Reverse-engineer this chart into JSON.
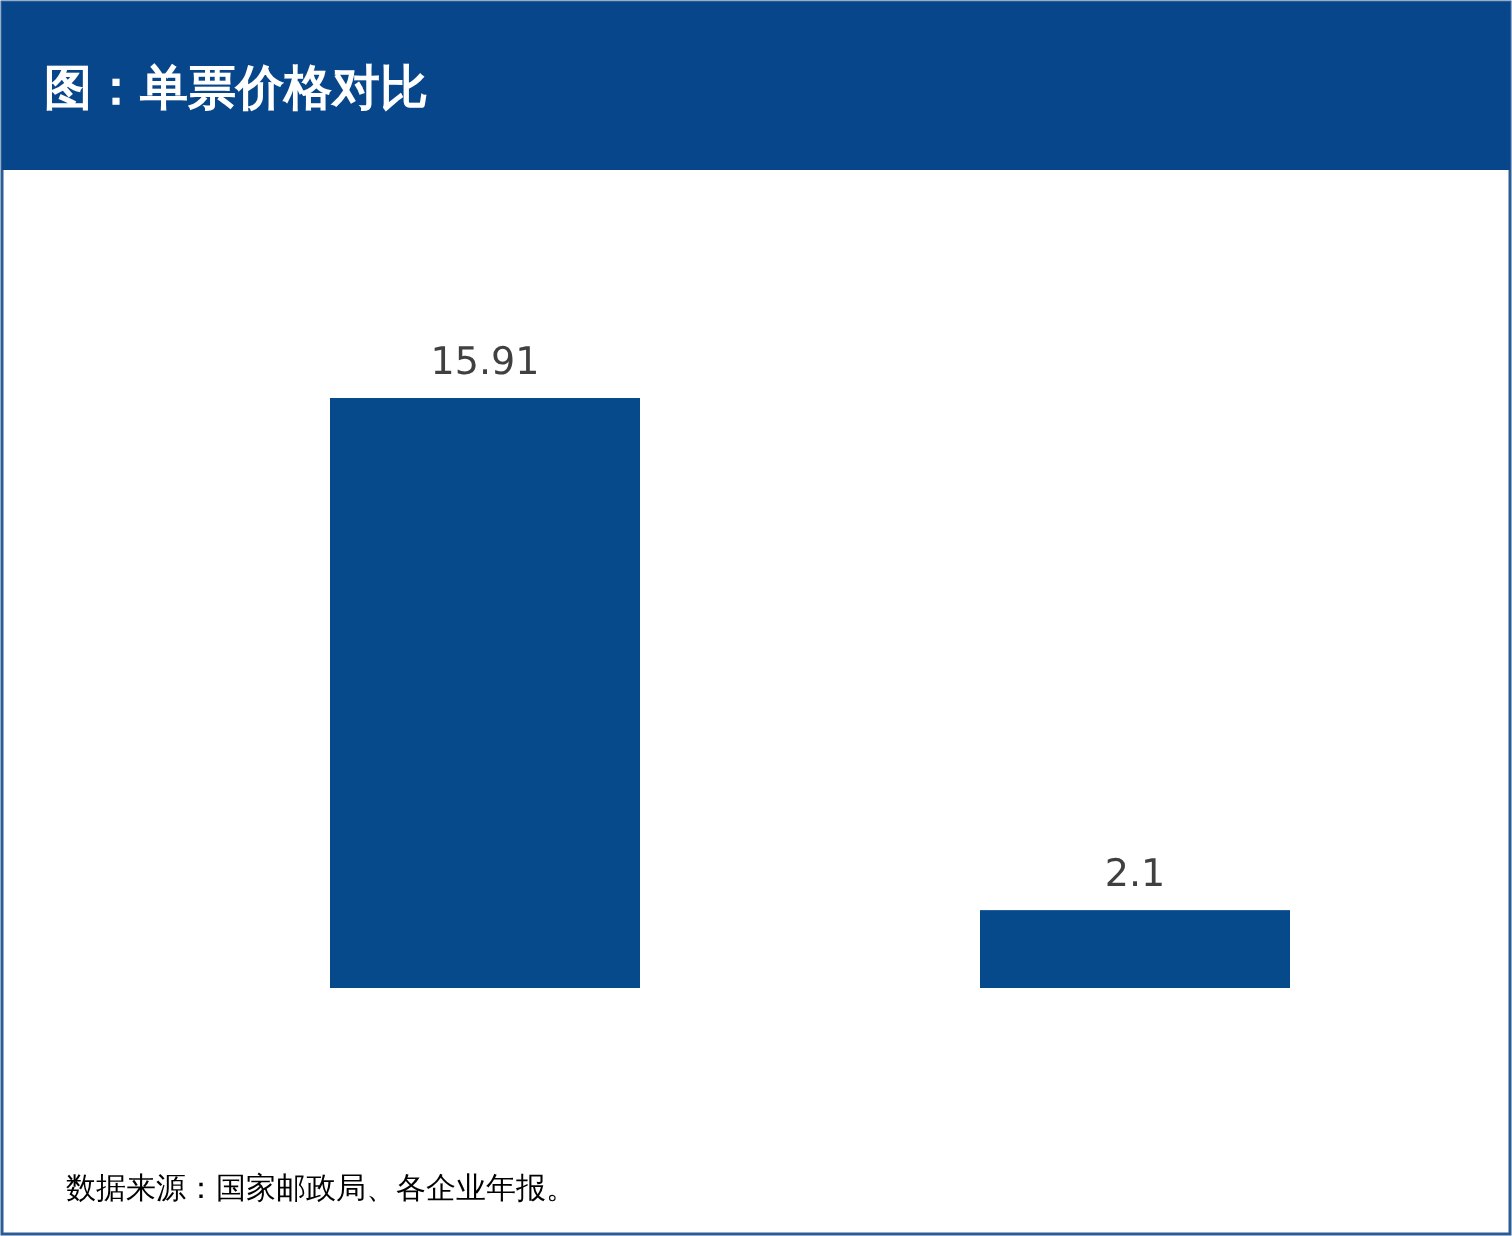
{
  "chart_data": {
    "type": "bar",
    "title": "图：单票价格对比",
    "categories": [
      null,
      null
    ],
    "values": [
      15.91,
      2.1
    ],
    "color": "#074a8c",
    "data_labels": true,
    "annotations": [
      "数据来源：国家邮政局、各企业年报。"
    ]
  }
}
